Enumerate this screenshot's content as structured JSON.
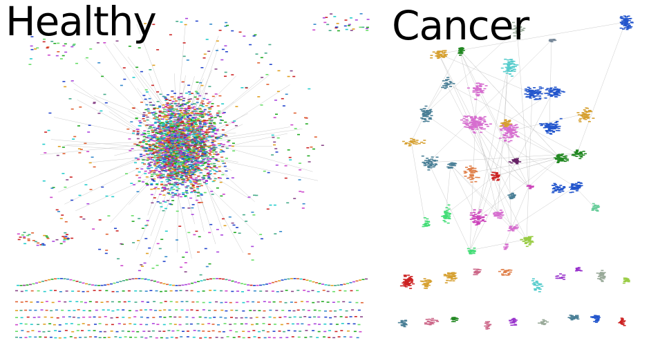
{
  "panels": {
    "left": {
      "title": "Healthy"
    },
    "right": {
      "title": "Cancer"
    }
  },
  "palette": {
    "healthy": [
      "#cc44cc",
      "#2244cc",
      "#22aa22",
      "#e0a020",
      "#22cccc",
      "#cc2222",
      "#66dd66",
      "#aa44dd",
      "#e06030",
      "#3388cc",
      "#884488",
      "#44aa88"
    ],
    "cancer": {
      "steel": "#4a7f96",
      "orchid": "#d66ecf",
      "royal": "#2255cc",
      "gold": "#d6a030",
      "green": "#228822",
      "teal": "#55cccc",
      "red": "#cc2222",
      "magenta": "#cc44bb",
      "spring": "#44dd77",
      "lime": "#99cc44",
      "mint": "#66cc99",
      "orange": "#e0804a",
      "purple": "#9933cc",
      "plum": "#662266",
      "sage": "#99aa99",
      "rose": "#cc6688",
      "grey": "#778899"
    },
    "edge": "#bbbbbb"
  }
}
